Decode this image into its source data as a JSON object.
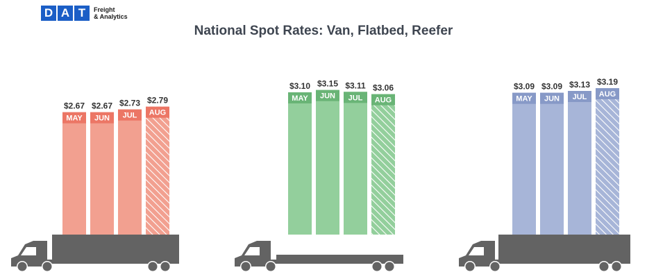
{
  "logo": {
    "mark": [
      "D",
      "A",
      "T"
    ],
    "line1": "Freight",
    "line2": "& Analytics"
  },
  "title": "National Spot Rates: Van, Flatbed, Reefer",
  "chart_data": [
    {
      "type": "bar",
      "categories": [
        "MAY",
        "JUN",
        "JUL",
        "AUG"
      ],
      "series": [
        {
          "values": [
            2.67,
            2.67,
            2.73,
            2.79
          ]
        }
      ],
      "value_labels": [
        "$2.67",
        "$2.67",
        "$2.73",
        "$2.79"
      ],
      "color": "#f2a090",
      "label_color": "#ec7665",
      "hatched_last": true
    },
    {
      "type": "bar",
      "categories": [
        "MAY",
        "JUN",
        "JUL",
        "AUG"
      ],
      "series": [
        {
          "values": [
            3.1,
            3.15,
            3.11,
            3.06
          ]
        }
      ],
      "value_labels": [
        "$3.10",
        "$3.15",
        "$3.11",
        "$3.06"
      ],
      "color": "#93cf9c",
      "label_color": "#69b476",
      "hatched_last": true
    },
    {
      "type": "bar",
      "categories": [
        "MAY",
        "JUN",
        "JUL",
        "AUG"
      ],
      "series": [
        {
          "values": [
            3.09,
            3.09,
            3.13,
            3.19
          ]
        }
      ],
      "value_labels": [
        "$3.09",
        "$3.09",
        "$3.13",
        "$3.19"
      ],
      "color": "#a7b5d8",
      "label_color": "#8799c7",
      "hatched_last": true
    }
  ]
}
